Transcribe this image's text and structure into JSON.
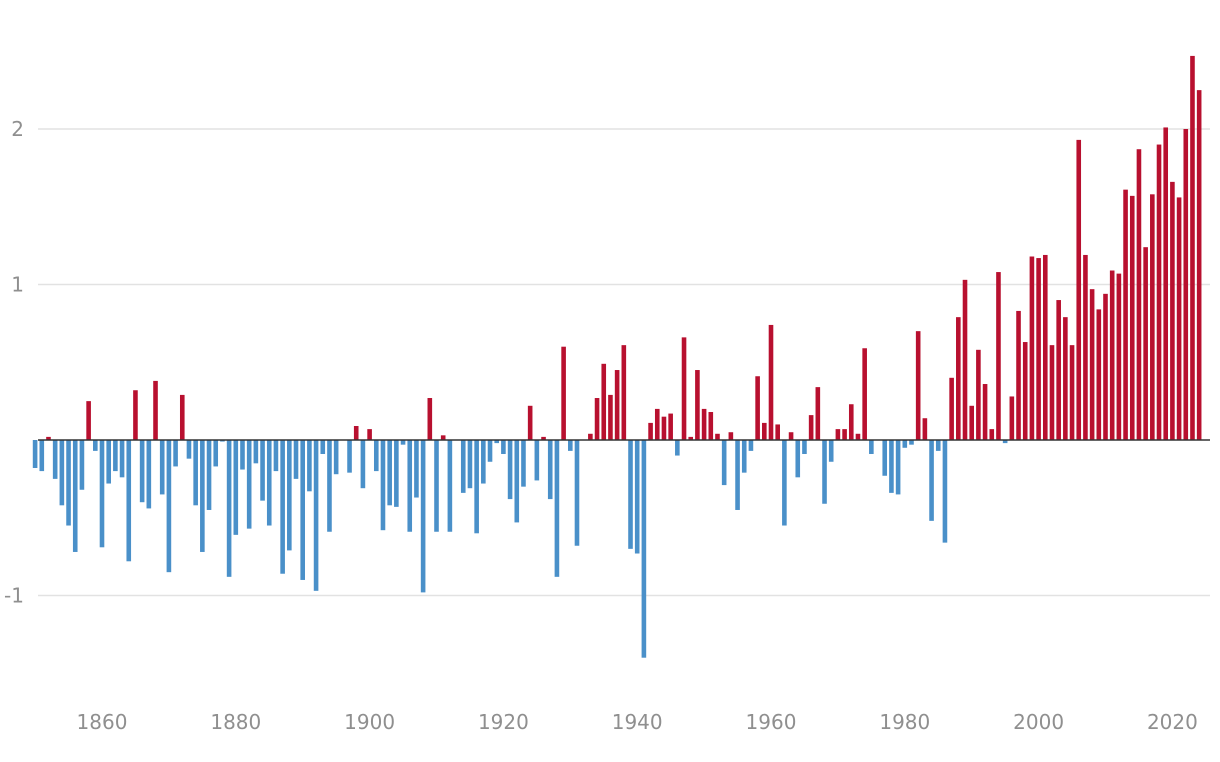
{
  "chart_data": {
    "type": "bar",
    "title": "",
    "xlabel": "",
    "ylabel": "",
    "xlim": [
      1850,
      2025
    ],
    "ylim": [
      -1.6,
      2.7
    ],
    "grid": true,
    "colors": {
      "positive": "#b8102f",
      "negative": "#4a90c9"
    },
    "x_ticks": [
      {
        "value": 1860,
        "label": "1860"
      },
      {
        "value": 1880,
        "label": "1880"
      },
      {
        "value": 1900,
        "label": "1900"
      },
      {
        "value": 1920,
        "label": "1920"
      },
      {
        "value": 1940,
        "label": "1940"
      },
      {
        "value": 1960,
        "label": "1960"
      },
      {
        "value": 1980,
        "label": "1980"
      },
      {
        "value": 2000,
        "label": "2000"
      },
      {
        "value": 2020,
        "label": "2020"
      }
    ],
    "y_ticks": [
      {
        "value": 2,
        "label": "2"
      },
      {
        "value": 1,
        "label": "1"
      },
      {
        "value": -1,
        "label": "-1"
      }
    ],
    "start_year": 1850,
    "values": [
      -0.18,
      -0.2,
      0.02,
      -0.25,
      -0.42,
      -0.55,
      -0.72,
      -0.32,
      0.25,
      -0.07,
      -0.69,
      -0.28,
      -0.2,
      -0.24,
      -0.78,
      0.32,
      -0.4,
      -0.44,
      0.38,
      -0.35,
      -0.85,
      -0.17,
      0.29,
      -0.12,
      -0.42,
      -0.72,
      -0.45,
      -0.17,
      -0.01,
      -0.88,
      -0.61,
      -0.19,
      -0.57,
      -0.15,
      -0.39,
      -0.55,
      -0.2,
      -0.86,
      -0.71,
      -0.25,
      -0.9,
      -0.33,
      -0.97,
      -0.09,
      -0.59,
      -0.22,
      0.0,
      -0.21,
      0.09,
      -0.31,
      0.07,
      -0.2,
      -0.58,
      -0.42,
      -0.43,
      -0.03,
      -0.59,
      -0.37,
      -0.98,
      0.27,
      -0.59,
      0.03,
      -0.59,
      0.0,
      -0.34,
      -0.31,
      -0.6,
      -0.28,
      -0.14,
      -0.02,
      -0.09,
      -0.38,
      -0.53,
      -0.3,
      0.22,
      -0.26,
      0.02,
      -0.38,
      -0.88,
      0.6,
      -0.07,
      -0.68,
      0.0,
      0.04,
      0.27,
      0.49,
      0.29,
      0.45,
      0.61,
      -0.7,
      -0.73,
      -1.4,
      0.11,
      0.2,
      0.15,
      0.17,
      -0.1,
      0.66,
      0.02,
      0.45,
      0.2,
      0.18,
      0.04,
      -0.29,
      0.05,
      -0.45,
      -0.21,
      -0.07,
      0.41,
      0.11,
      0.74,
      0.1,
      -0.55,
      0.05,
      -0.24,
      -0.09,
      0.16,
      0.34,
      -0.41,
      -0.14,
      0.07,
      0.07,
      0.23,
      0.04,
      0.59,
      -0.09,
      0.0,
      -0.23,
      -0.34,
      -0.35,
      -0.05,
      -0.03,
      0.7,
      0.14,
      -0.52,
      -0.07,
      -0.66,
      0.4,
      0.79,
      1.03,
      0.22,
      0.58,
      0.36,
      0.07,
      1.08,
      -0.02,
      0.28,
      0.83,
      0.63,
      1.18,
      1.17,
      1.19,
      0.61,
      0.9,
      0.79,
      0.61,
      1.93,
      1.19,
      0.97,
      0.84,
      0.94,
      1.09,
      1.07,
      1.61,
      1.57,
      1.87,
      1.24,
      1.58,
      1.9,
      2.01,
      1.66,
      1.56,
      2.0,
      2.47,
      2.25
    ]
  }
}
